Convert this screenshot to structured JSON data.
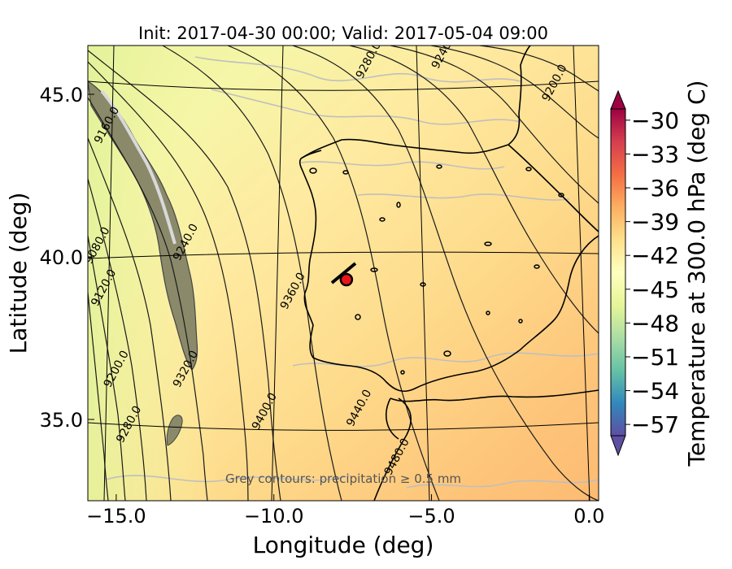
{
  "chart_data": {
    "type": "contour-map",
    "title": "Init: 2017-04-30 00:00; Valid: 2017-05-04 09:00",
    "xlabel": "Longitude (deg)",
    "ylabel": "Latitude (deg)",
    "xlim": [
      -15.9,
      0.3
    ],
    "ylim": [
      32.5,
      46.5
    ],
    "x_ticks": [
      -15.0,
      -10.0,
      -5.0,
      0.0
    ],
    "x_tick_labels": [
      "−15.0",
      "−10.0",
      "−5.0",
      "0.0"
    ],
    "y_ticks": [
      35.0,
      40.0,
      45.0
    ],
    "y_tick_labels": [
      "35.0",
      "40.0",
      "45.0"
    ],
    "colorbar": {
      "label": "Temperature at 300.0 hPa (deg C)",
      "range": [
        -58,
        -29
      ],
      "ticks": [
        -30,
        -33,
        -36,
        -39,
        -42,
        -45,
        -48,
        -51,
        -54,
        -57
      ],
      "tick_labels": [
        "−30",
        "−33",
        "−36",
        "−39",
        "−42",
        "−45",
        "−48",
        "−51",
        "−54",
        "−57"
      ],
      "extend": "both",
      "colormap": "Spectral_r"
    },
    "contour_labels": [
      {
        "text": "9160.0",
        "lon": -15.2,
        "lat": 44.0
      },
      {
        "text": "9080.0",
        "lon": -15.5,
        "lat": 40.3
      },
      {
        "text": "9120.0",
        "lon": -15.3,
        "lat": 39.0
      },
      {
        "text": "9200.0",
        "lon": -14.9,
        "lat": 36.5
      },
      {
        "text": "9280.0",
        "lon": -14.5,
        "lat": 34.8
      },
      {
        "text": "9240.0",
        "lon": -12.7,
        "lat": 40.4
      },
      {
        "text": "9320.0",
        "lon": -12.7,
        "lat": 36.5
      },
      {
        "text": "9360.0",
        "lon": -9.3,
        "lat": 38.9
      },
      {
        "text": "9400.0",
        "lon": -10.2,
        "lat": 35.2
      },
      {
        "text": "9440.0",
        "lon": -7.2,
        "lat": 35.3
      },
      {
        "text": "9480.0",
        "lon": -6.0,
        "lat": 33.8
      },
      {
        "text": "9280.0",
        "lon": -6.9,
        "lat": 46.0
      },
      {
        "text": "9240.0",
        "lon": -4.5,
        "lat": 46.3
      },
      {
        "text": "9200.0",
        "lon": -1.0,
        "lat": 45.3
      }
    ],
    "marker": {
      "lon": -7.7,
      "lat": 39.3,
      "color": "#e8141c"
    },
    "annotation": "Grey contours: precipitation ≥ 0.5 mm"
  }
}
